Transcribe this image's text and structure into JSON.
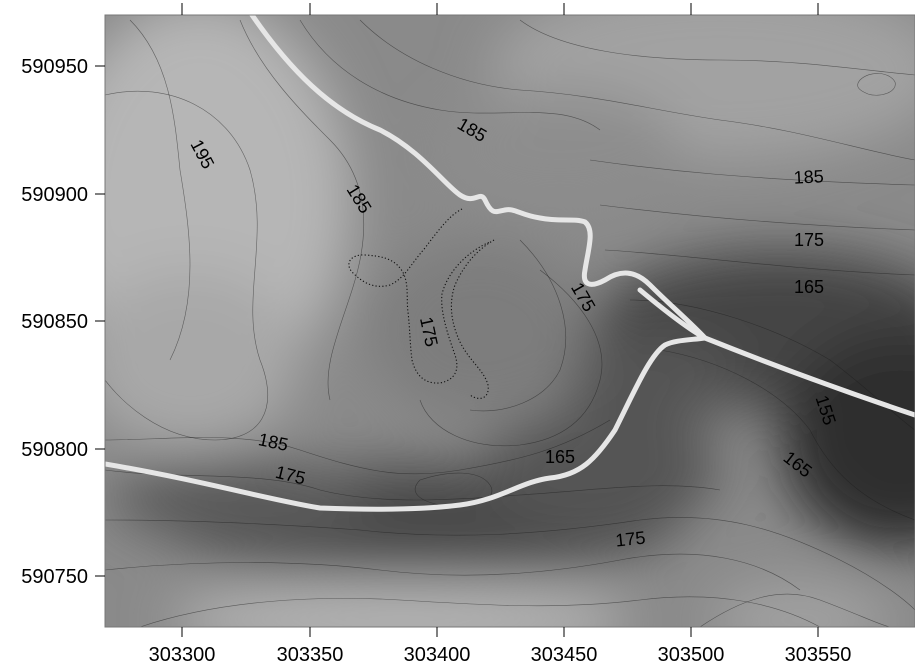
{
  "map": {
    "x_tick_labels": [
      "303300",
      "303350",
      "303400",
      "303450",
      "303500",
      "303550"
    ],
    "y_tick_labels": [
      "590950",
      "590900",
      "590850",
      "590800",
      "590750"
    ],
    "contour_labels": [
      "195",
      "185",
      "185",
      "185",
      "175",
      "165",
      "175",
      "175",
      "155",
      "185",
      "175",
      "165",
      "165",
      "175"
    ],
    "colors": {
      "high_ground": "#b4b4b4",
      "low_ground": "#3c3c3c",
      "road": "#e6e6e6",
      "contour_line": "#1e1e1e"
    }
  }
}
